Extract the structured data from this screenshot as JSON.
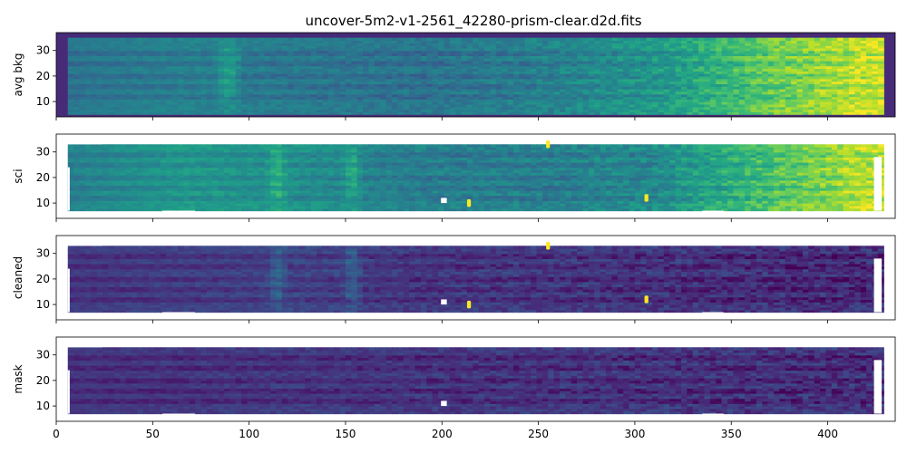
{
  "title": "uncover-5m2-v1-2561_42280-prism-clear.d2d.fits",
  "chart_data": {
    "type": "heatmap",
    "title": "uncover-5m2-v1-2561_42280-prism-clear.d2d.fits",
    "colormap": "viridis",
    "xlim": [
      0,
      435
    ],
    "ylim": [
      4,
      37
    ],
    "x_ticks": [
      0,
      50,
      100,
      150,
      200,
      250,
      300,
      350,
      400
    ],
    "y_ticks": [
      10,
      20,
      30
    ],
    "trace_rows": [
      12,
      16,
      20,
      25,
      29
    ],
    "panels": [
      {
        "ylabel": "avg bkg",
        "x_extent": [
          6,
          428
        ],
        "y_extent": [
          5,
          35
        ],
        "base_level": [
          0.4,
          0.45,
          0.42,
          0.4,
          0.45,
          0.55,
          0.8,
          0.98
        ],
        "features": [
          {
            "kind": "vertical_band",
            "x": 90,
            "amplitude": 0.1
          },
          {
            "kind": "vertical_band",
            "x": 85,
            "amplitude": 0.12
          }
        ]
      },
      {
        "ylabel": "sci",
        "x_extent": [
          6,
          428
        ],
        "y_extent": [
          7,
          33
        ],
        "base_level": [
          0.45,
          0.55,
          0.52,
          0.45,
          0.45,
          0.5,
          0.75,
          0.98
        ],
        "features": [
          {
            "kind": "vertical_band",
            "x": 113,
            "amplitude": 0.15
          },
          {
            "kind": "vertical_band",
            "x": 152,
            "amplitude": 0.15
          },
          {
            "kind": "hot_pixel",
            "x": 255,
            "y": 33
          },
          {
            "kind": "hot_pixel",
            "x": 306,
            "y": 12
          },
          {
            "kind": "hot_pixel",
            "x": 214,
            "y": 10
          },
          {
            "kind": "hole",
            "x": 201,
            "y": 11
          }
        ]
      },
      {
        "ylabel": "cleaned",
        "x_extent": [
          6,
          428
        ],
        "y_extent": [
          7,
          33
        ],
        "base_level": [
          0.18,
          0.2,
          0.22,
          0.18,
          0.18,
          0.17,
          0.15,
          0.14
        ],
        "features": [
          {
            "kind": "vertical_band",
            "x": 113,
            "amplitude": 0.15
          },
          {
            "kind": "vertical_band",
            "x": 152,
            "amplitude": 0.15
          },
          {
            "kind": "hot_pixel",
            "x": 255,
            "y": 33
          },
          {
            "kind": "hot_pixel",
            "x": 306,
            "y": 12
          },
          {
            "kind": "hot_pixel",
            "x": 214,
            "y": 10
          },
          {
            "kind": "hole",
            "x": 201,
            "y": 11
          }
        ]
      },
      {
        "ylabel": "mask",
        "x_extent": [
          6,
          428
        ],
        "y_extent": [
          7,
          33
        ],
        "base_level": [
          0.17,
          0.17,
          0.18,
          0.17,
          0.17,
          0.17,
          0.16,
          0.15
        ],
        "features": [
          {
            "kind": "hole",
            "x": 201,
            "y": 11
          }
        ]
      }
    ]
  }
}
